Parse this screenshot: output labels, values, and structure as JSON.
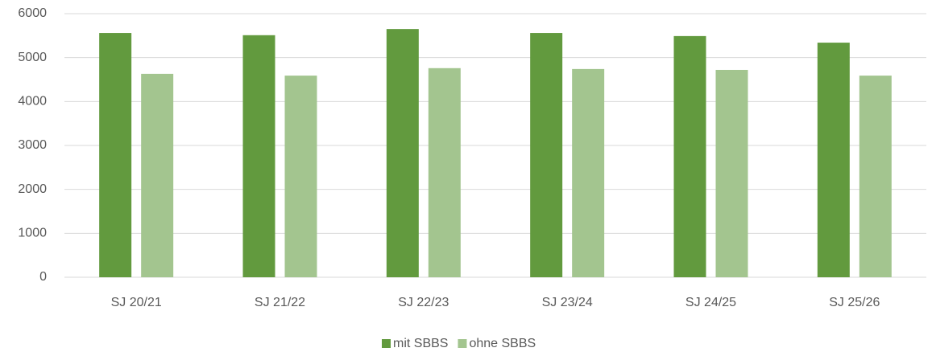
{
  "chart_data": {
    "type": "bar",
    "categories": [
      "SJ 20/21",
      "SJ 21/22",
      "SJ 22/23",
      "SJ 23/24",
      "SJ 24/25",
      "SJ 25/26"
    ],
    "series": [
      {
        "name": "mit SBBS",
        "color": "#629a3e",
        "values": [
          5560,
          5510,
          5650,
          5560,
          5490,
          5340
        ]
      },
      {
        "name": "ohne SBBS",
        "color": "#a3c58f",
        "values": [
          4630,
          4590,
          4760,
          4740,
          4720,
          4590
        ]
      }
    ],
    "ylim": [
      0,
      6000
    ],
    "yticks": [
      0,
      1000,
      2000,
      3000,
      4000,
      5000,
      6000
    ],
    "grid": true,
    "legend": "bottom"
  }
}
